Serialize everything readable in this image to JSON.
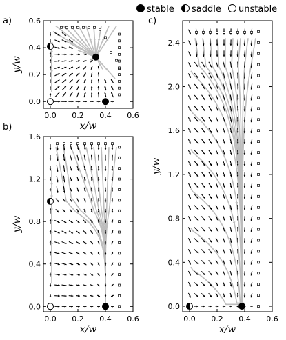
{
  "legend": {
    "entries": [
      {
        "marker": "filled-circle",
        "label": "stable"
      },
      {
        "marker": "half-filled-circle",
        "label": "saddle"
      },
      {
        "marker": "open-circle",
        "label": "unstable"
      }
    ]
  },
  "colors": {
    "streamline": "#bdbdbd",
    "arrow": "#000000",
    "fixed_point": "#000000",
    "boundary_square": "#000000"
  },
  "chart_data": [
    {
      "panel_label": "a)",
      "type": "scatter",
      "title": "",
      "xlabel": "x/w",
      "ylabel": "y/w",
      "xlim": [
        -0.05,
        0.6
      ],
      "ylim": [
        -0.05,
        0.6
      ],
      "xticks": [
        "0.0",
        "0.2",
        "0.4",
        "0.6"
      ],
      "yticks": [
        "0.0",
        "0.2",
        "0.4",
        "0.6"
      ],
      "xtick_values": [
        0,
        0.2,
        0.4,
        0.6
      ],
      "ytick_values": [
        0,
        0.2,
        0.4,
        0.6
      ],
      "fixed_points": [
        {
          "kind": "stable",
          "x": 0.33,
          "y": 0.33
        },
        {
          "kind": "stable",
          "x": 0.4,
          "y": 0.0
        },
        {
          "kind": "saddle",
          "x": 0.0,
          "y": 0.41
        },
        {
          "kind": "unstable",
          "x": 0.0,
          "y": 0.0
        }
      ],
      "field": "A",
      "boundary_squares": "diagonal"
    },
    {
      "panel_label": "b)",
      "type": "scatter",
      "title": "",
      "xlabel": "x/w",
      "ylabel": "y/w",
      "xlim": [
        -0.05,
        0.6
      ],
      "ylim": [
        -0.05,
        1.6
      ],
      "xticks": [
        "0.0",
        "0.2",
        "0.4",
        "0.6"
      ],
      "yticks": [
        "0.0",
        "0.4",
        "0.8",
        "1.2",
        "1.6"
      ],
      "xtick_values": [
        0,
        0.2,
        0.4,
        0.6
      ],
      "ytick_values": [
        0,
        0.4,
        0.8,
        1.2,
        1.6
      ],
      "fixed_points": [
        {
          "kind": "stable",
          "x": 0.4,
          "y": 0.0
        },
        {
          "kind": "saddle",
          "x": 0.0,
          "y": 0.99
        },
        {
          "kind": "unstable",
          "x": 0.0,
          "y": 0.0
        }
      ],
      "field": "B",
      "boundary_squares": "right-edge"
    },
    {
      "panel_label": "c)",
      "type": "scatter",
      "title": "",
      "xlabel": "x/w",
      "ylabel": "y/w",
      "xlim": [
        -0.05,
        0.6
      ],
      "ylim": [
        -0.05,
        2.6
      ],
      "xticks": [
        "0.0",
        "0.2",
        "0.4",
        "0.6"
      ],
      "yticks": [
        "0.0",
        "0.4",
        "0.8",
        "1.2",
        "1.6",
        "2.0",
        "2.4"
      ],
      "xtick_values": [
        0,
        0.2,
        0.4,
        0.6
      ],
      "ytick_values": [
        0,
        0.4,
        0.8,
        1.2,
        1.6,
        2.0,
        2.4
      ],
      "fixed_points": [
        {
          "kind": "stable",
          "x": 0.38,
          "y": 0.0
        },
        {
          "kind": "saddle",
          "x": 0.0,
          "y": 0.0
        }
      ],
      "field": "C",
      "boundary_squares": "right-edge"
    }
  ]
}
